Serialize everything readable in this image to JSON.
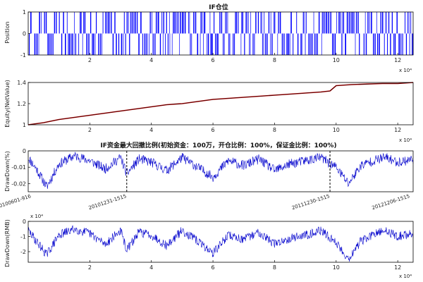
{
  "chart_data": [
    {
      "type": "bar",
      "title": "IF仓位",
      "ylabel": "Position",
      "x_exponent_label": "x 10⁴",
      "xlim": [
        0,
        12.5
      ],
      "ylim": [
        -1,
        1
      ],
      "x_ticks": [
        "2",
        "4",
        "6",
        "8",
        "10",
        "12"
      ],
      "y_ticks": [
        "1",
        "0",
        "-1"
      ],
      "series_color": "#0000ff",
      "note": "dense alternating long/short (+1/-1) position bars across the whole range"
    },
    {
      "type": "line",
      "title": "",
      "ylabel": "Equity(NetValue)",
      "x_exponent_label": "x 10⁴",
      "xlim": [
        0,
        12.5
      ],
      "ylim": [
        1,
        1.4
      ],
      "x_ticks": [
        "2",
        "4",
        "6",
        "8",
        "10",
        "12"
      ],
      "y_ticks": [
        "1.4",
        "1.2",
        "1"
      ],
      "series_color": "#000000",
      "overlay_color": "#c00000",
      "x": [
        0,
        0.5,
        1,
        1.5,
        2,
        2.5,
        3,
        3.5,
        4,
        4.5,
        5,
        5.5,
        6,
        6.5,
        7,
        7.5,
        8,
        8.5,
        9,
        9.5,
        9.8,
        10,
        10.5,
        11,
        11.5,
        12,
        12.5
      ],
      "values": [
        1.0,
        1.02,
        1.05,
        1.07,
        1.09,
        1.11,
        1.13,
        1.15,
        1.17,
        1.19,
        1.2,
        1.22,
        1.24,
        1.25,
        1.26,
        1.27,
        1.28,
        1.29,
        1.3,
        1.31,
        1.32,
        1.37,
        1.38,
        1.385,
        1.39,
        1.39,
        1.4
      ]
    },
    {
      "type": "line",
      "title": "IF资金最大回撤比例(初始资金：100万，开仓比例：100%，保证金比例：100%)",
      "ylabel": "DrawDown(%)",
      "xlim": [
        0,
        12.5
      ],
      "ylim": [
        -0.025,
        0
      ],
      "y_ticks": [
        "0",
        "-0.01",
        "-0.02"
      ],
      "series_color": "#0000cc",
      "x": [
        0,
        0.3,
        0.6,
        1.0,
        1.5,
        2.0,
        2.5,
        3.0,
        3.2,
        3.6,
        4.0,
        4.5,
        5.0,
        5.5,
        6.0,
        6.5,
        7.0,
        7.5,
        8.0,
        8.5,
        9.0,
        9.5,
        10.0,
        10.4,
        10.8,
        11.2,
        11.6,
        12.0,
        12.5
      ],
      "values": [
        -0.004,
        -0.012,
        -0.022,
        -0.008,
        -0.003,
        -0.006,
        -0.011,
        -0.004,
        -0.014,
        -0.005,
        -0.007,
        -0.012,
        -0.004,
        -0.01,
        -0.016,
        -0.006,
        -0.009,
        -0.005,
        -0.012,
        -0.008,
        -0.006,
        -0.004,
        -0.01,
        -0.02,
        -0.009,
        -0.006,
        -0.004,
        -0.007,
        -0.005
      ],
      "annotations": [
        {
          "label": "20100601-916",
          "x": 0.1
        },
        {
          "label": "20101231-1515",
          "x": 3.2
        },
        {
          "label": "20111230-1515",
          "x": 9.8
        },
        {
          "label": "20121206-1515",
          "x": 12.4
        }
      ]
    },
    {
      "type": "line",
      "title": "",
      "ylabel": "DrawDown(RMB)",
      "y_exponent_label": "x 10⁴",
      "x_exponent_label": "x 10⁴",
      "xlim": [
        0,
        12.5
      ],
      "ylim": [
        -2.7,
        0
      ],
      "x_ticks": [
        "2",
        "4",
        "6",
        "8",
        "10",
        "12"
      ],
      "y_ticks": [
        "0",
        "-1",
        "-2"
      ],
      "series_color": "#0000cc",
      "x": [
        0,
        0.3,
        0.6,
        1.0,
        1.5,
        2.0,
        2.5,
        3.0,
        3.2,
        3.6,
        4.0,
        4.5,
        5.0,
        5.5,
        6.0,
        6.5,
        7.0,
        7.5,
        8.0,
        8.5,
        9.0,
        9.5,
        10.0,
        10.4,
        10.8,
        11.2,
        11.6,
        12.0,
        12.5
      ],
      "values": [
        -0.6,
        -1.4,
        -2.2,
        -0.9,
        -0.5,
        -0.8,
        -1.5,
        -0.6,
        -1.9,
        -0.7,
        -0.9,
        -1.6,
        -0.6,
        -1.3,
        -2.1,
        -0.9,
        -1.2,
        -0.7,
        -1.5,
        -1.1,
        -0.9,
        -0.6,
        -1.4,
        -2.5,
        -1.3,
        -0.9,
        -0.6,
        -1.0,
        -0.8
      ]
    }
  ]
}
